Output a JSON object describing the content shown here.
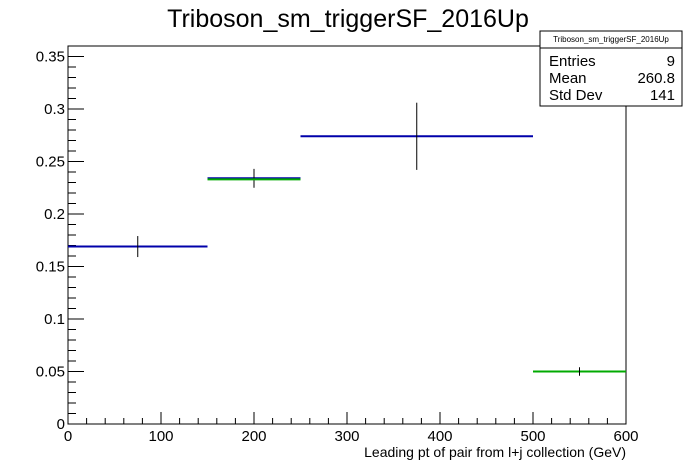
{
  "chart_data": {
    "type": "scatter",
    "title": "Triboson_sm_triggerSF_2016Up",
    "xlabel": "Leading pt of pair from l+j collection (GeV)",
    "ylabel": "",
    "xlim": [
      0,
      600
    ],
    "ylim": [
      0,
      0.36
    ],
    "x_ticks": [
      0,
      100,
      200,
      300,
      400,
      500,
      600
    ],
    "y_ticks": [
      0,
      0.05,
      0.1,
      0.15,
      0.2,
      0.25,
      0.3,
      0.35
    ],
    "x_tick_labels": [
      "0",
      "100",
      "200",
      "300",
      "400",
      "500",
      "600"
    ],
    "y_tick_labels": [
      "0",
      "0.05",
      "0.1",
      "0.15",
      "0.2",
      "0.25",
      "0.3",
      "0.35"
    ],
    "grid": false,
    "series": [
      {
        "color": "#0000aa",
        "points": [
          {
            "x_low": 0,
            "x_high": 150,
            "y": 0.169,
            "y_err": 0.01
          },
          {
            "x_low": 150,
            "x_high": 250,
            "y": 0.234,
            "y_err": 0.009
          },
          {
            "x_low": 250,
            "x_high": 500,
            "y": 0.274,
            "y_err": 0.032
          }
        ]
      },
      {
        "color": "#00aa00",
        "points": [
          {
            "x_low": 150,
            "x_high": 250,
            "y": 0.233,
            "y_err": 0
          },
          {
            "x_low": 500,
            "x_high": 600,
            "y": 0.05,
            "y_err": 0.004
          }
        ]
      }
    ],
    "stats_box": {
      "title": "Triboson_sm_triggerSF_2016Up",
      "rows": [
        {
          "label": "Entries",
          "value": "9"
        },
        {
          "label": "Mean",
          "value": "260.8"
        },
        {
          "label": "Std Dev",
          "value": "141"
        }
      ]
    }
  }
}
